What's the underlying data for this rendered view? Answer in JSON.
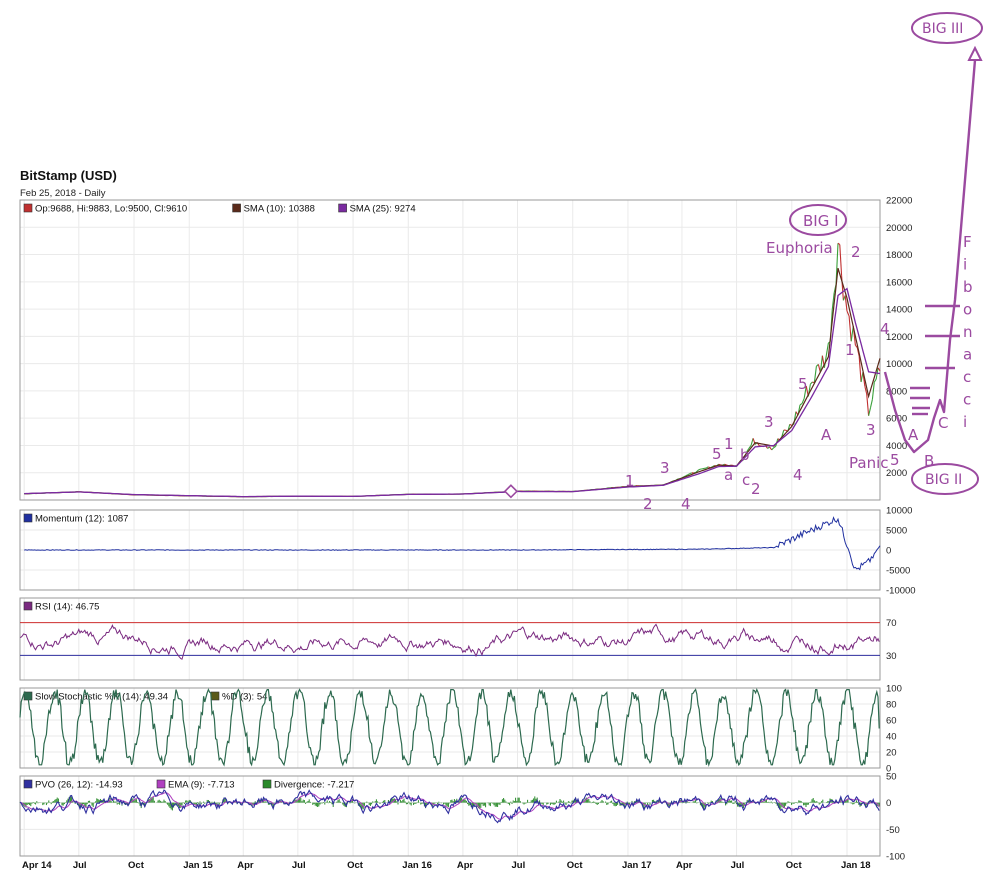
{
  "header": {
    "title": "BitStamp (USD)",
    "subtitle": "Feb 25, 2018 - Daily"
  },
  "colors": {
    "price_up": "#3aa03a",
    "price_down": "#c03030",
    "sma10": "#5a2a1a",
    "sma25": "#7a2aa0",
    "momentum": "#2030a0",
    "rsi": "#7a2a80",
    "rsi_fill": "#e05a6a",
    "stoch_k": "#2d6a4f",
    "pvo": "#3030a0",
    "pvo_ema": "#b040c0",
    "divergence": "#2a8a2a",
    "annotation": "#9b4aa0"
  },
  "chart_data": [
    {
      "type": "line",
      "panel": "price",
      "legend": [
        {
          "text": "Op:9688, Hi:9883, Lo:9500, Cl:9610",
          "color": "#c03030"
        },
        {
          "text": "SMA (10): 10388",
          "color": "#5a2a1a"
        },
        {
          "text": "SMA (25): 9274",
          "color": "#7a2aa0"
        }
      ],
      "x_ticks": [
        "Apr 14",
        "Jul",
        "Oct",
        "Jan 15",
        "Apr",
        "Jul",
        "Oct",
        "Jan 16",
        "Apr",
        "Jul",
        "Oct",
        "Jan 17",
        "Apr",
        "Jul",
        "Oct",
        "Jan 18"
      ],
      "y_ticks": [
        2000,
        4000,
        6000,
        8000,
        10000,
        12000,
        14000,
        16000,
        18000,
        20000,
        22000
      ],
      "ylim": [
        0,
        22000
      ],
      "x": [
        "2014-04",
        "2014-07",
        "2014-10",
        "2015-01",
        "2015-04",
        "2015-07",
        "2015-10",
        "2016-01",
        "2016-04",
        "2016-07",
        "2016-10",
        "2017-01",
        "2017-03",
        "2017-05",
        "2017-06",
        "2017-07",
        "2017-08",
        "2017-09",
        "2017-10",
        "2017-11",
        "2017-12-01",
        "2017-12-17",
        "2018-01-01",
        "2018-01-15",
        "2018-02-06",
        "2018-02-25"
      ],
      "close": [
        450,
        600,
        380,
        300,
        240,
        280,
        260,
        420,
        440,
        650,
        620,
        1000,
        1100,
        2200,
        2600,
        2500,
        4400,
        3900,
        5500,
        8500,
        11000,
        19000,
        14000,
        11500,
        6500,
        9610
      ],
      "sma10": [
        460,
        600,
        390,
        310,
        245,
        280,
        262,
        415,
        440,
        640,
        620,
        980,
        1100,
        2100,
        2550,
        2500,
        4200,
        3950,
        5400,
        8000,
        10500,
        17000,
        14800,
        12000,
        7600,
        10388
      ],
      "sma25": [
        470,
        590,
        400,
        320,
        250,
        278,
        265,
        410,
        438,
        620,
        615,
        950,
        1080,
        1950,
        2450,
        2480,
        3900,
        4000,
        5100,
        7400,
        9800,
        15000,
        15500,
        13000,
        9400,
        9274
      ],
      "annotations": [
        "BIG I",
        "Euphoria",
        "2",
        "1",
        "4",
        "3",
        "5",
        "A",
        "3",
        "1",
        "b",
        "a",
        "c",
        "2",
        "5",
        "4",
        "3",
        "1",
        "2",
        "4",
        "Panic",
        "5",
        "A",
        "B",
        "C",
        "BIG II",
        "BIG III",
        "F",
        "i",
        "b",
        "o",
        "n",
        "a",
        "c",
        "c",
        "i"
      ],
      "projection_levels": [
        14000,
        12000,
        10000,
        8000,
        7500,
        7000,
        6500
      ]
    },
    {
      "type": "line",
      "panel": "momentum",
      "legend": [
        {
          "text": "Momentum (12): 1087",
          "color": "#2030a0"
        }
      ],
      "y_ticks": [
        -10000,
        -5000,
        0,
        5000,
        10000
      ],
      "ylim": [
        -10000,
        10000
      ],
      "series": [
        {
          "name": "Momentum (12)",
          "x": [
            "2014-04",
            "2016-07",
            "2017-05",
            "2017-09",
            "2017-12-17",
            "2018-01-15",
            "2018-02-06",
            "2018-02-25"
          ],
          "values": [
            0,
            0,
            200,
            600,
            8000,
            -5000,
            -3000,
            1087
          ]
        }
      ]
    },
    {
      "type": "line",
      "panel": "rsi",
      "legend": [
        {
          "text": "RSI (14): 46.75",
          "color": "#7a2a80"
        }
      ],
      "y_ticks": [
        30,
        70
      ],
      "ylim": [
        0,
        100
      ],
      "reference_lines": [
        30,
        70
      ],
      "series": [
        {
          "name": "RSI (14)",
          "last": 46.75
        }
      ]
    },
    {
      "type": "line",
      "panel": "stochastic",
      "legend": [
        {
          "text": "Slow Stochastic %K (14): 49.34",
          "color": "#2d6a4f"
        },
        {
          "text": "%D (3): 54",
          "color": "#5a5a1a"
        }
      ],
      "y_ticks": [
        0,
        20,
        40,
        60,
        80,
        100
      ],
      "ylim": [
        0,
        100
      ],
      "series": [
        {
          "name": "Slow Stochastic %K (14)",
          "last": 49.34
        },
        {
          "name": "%D (3)",
          "last": 54
        }
      ]
    },
    {
      "type": "line",
      "panel": "pvo",
      "legend": [
        {
          "text": "PVO (26, 12): -14.93",
          "color": "#3030a0"
        },
        {
          "text": "EMA (9): -7.713",
          "color": "#b040c0"
        },
        {
          "text": "Divergence: -7.217",
          "color": "#2a8a2a"
        }
      ],
      "y_ticks": [
        -100,
        -50,
        0,
        50
      ],
      "ylim": [
        -100,
        50
      ],
      "series": [
        {
          "name": "PVO (26, 12)",
          "last": -14.93
        },
        {
          "name": "EMA (9)",
          "last": -7.713
        },
        {
          "name": "Divergence",
          "last": -7.217
        }
      ]
    }
  ]
}
